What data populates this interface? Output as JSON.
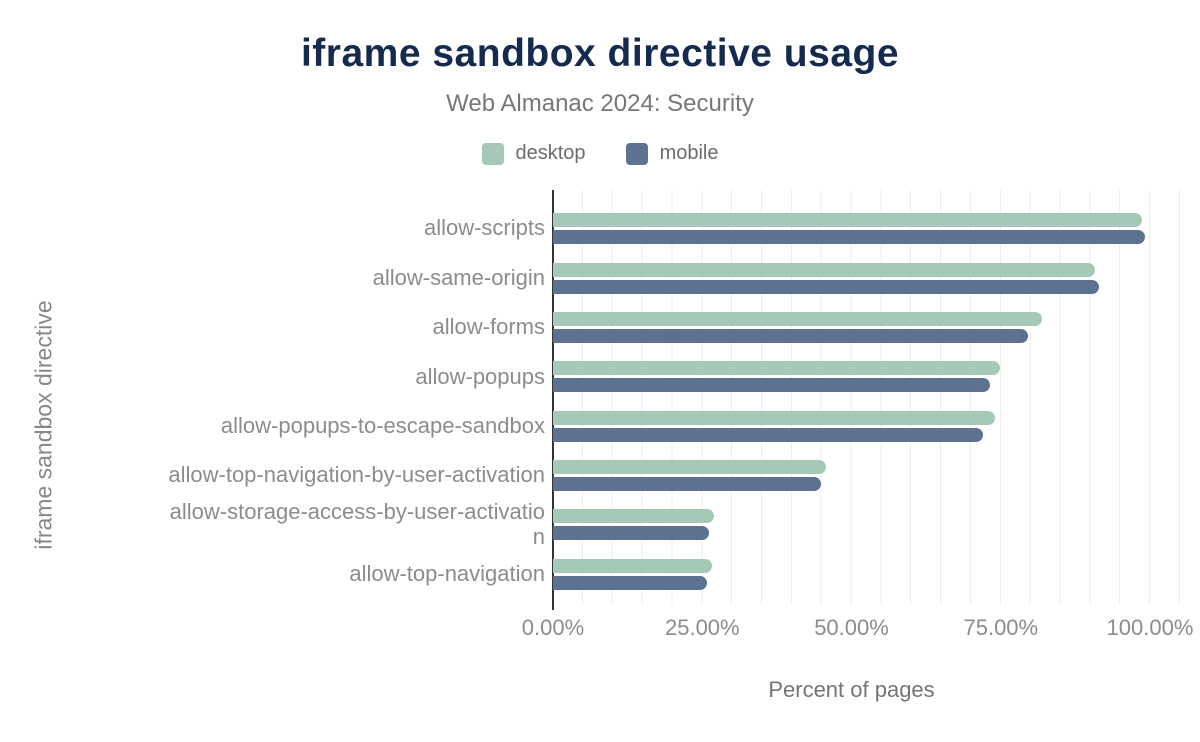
{
  "header": {
    "title": "iframe sandbox directive usage",
    "subtitle": "Web Almanac 2024: Security"
  },
  "legend": [
    {
      "label": "desktop",
      "color": "#a6c9b7"
    },
    {
      "label": "mobile",
      "color": "#5d7191"
    }
  ],
  "chart_data": {
    "type": "bar",
    "orientation": "horizontal",
    "title": "iframe sandbox directive usage",
    "subtitle": "Web Almanac 2024: Security",
    "xlabel": "Percent of pages",
    "ylabel": "iframe sandbox directive",
    "xlim": [
      0,
      105
    ],
    "grid": "vertical minor gridlines every 5%",
    "legend_position": "top",
    "categories": [
      "allow-scripts",
      "allow-same-origin",
      "allow-forms",
      "allow-popups",
      "allow-popups-to-escape-sandbox",
      "allow-top-navigation-by-user-activation",
      "allow-storage-access-by-user-activation",
      "allow-top-navigation"
    ],
    "series": [
      {
        "name": "desktop",
        "color": "#a6c9b7",
        "values": [
          98.6,
          90.8,
          81.9,
          74.8,
          74.0,
          45.8,
          27.0,
          26.6
        ]
      },
      {
        "name": "mobile",
        "color": "#5d7191",
        "values": [
          99.1,
          91.4,
          79.6,
          73.2,
          72.0,
          44.8,
          26.2,
          25.8
        ]
      }
    ],
    "x_ticks": [
      {
        "value": 0,
        "label": "0.00%"
      },
      {
        "value": 25,
        "label": "25.00%"
      },
      {
        "value": 50,
        "label": "50.00%"
      },
      {
        "value": 75,
        "label": "75.00%"
      },
      {
        "value": 100,
        "label": "100.00%"
      }
    ]
  }
}
